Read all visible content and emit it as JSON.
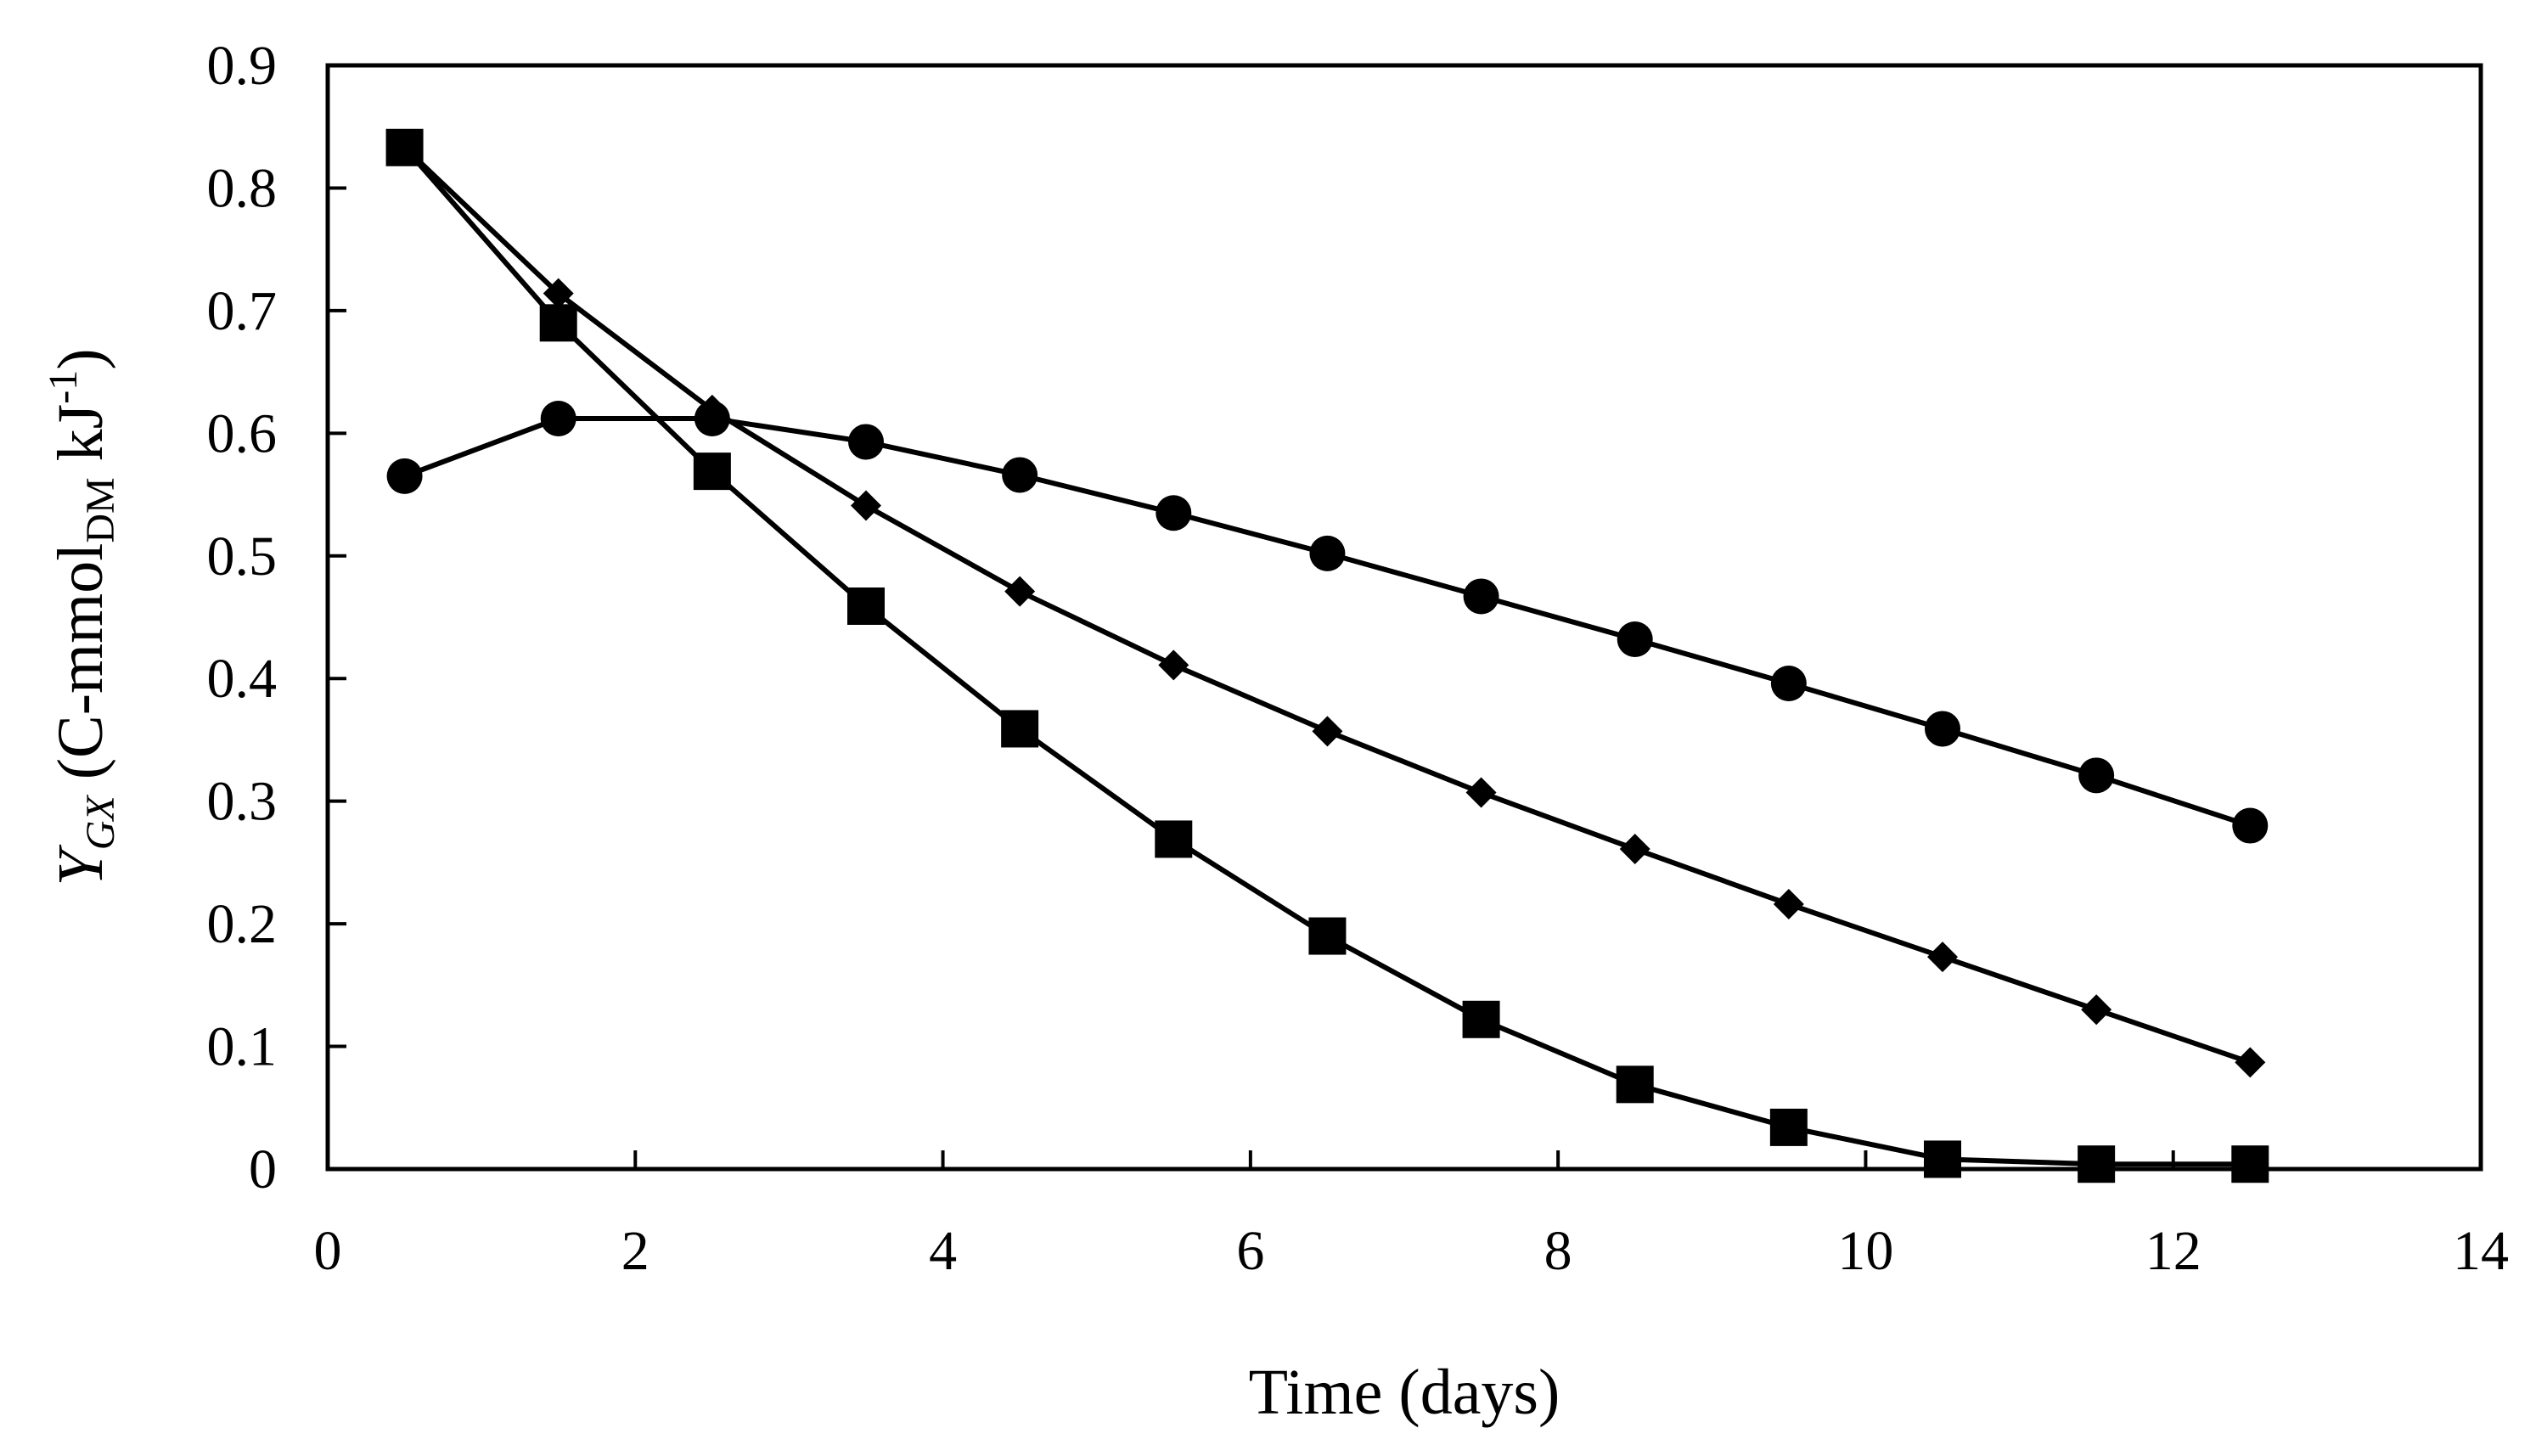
{
  "chart_data": {
    "type": "line",
    "title": "",
    "xlabel": "Time (days)",
    "ylabel": {
      "symbol": "Y",
      "symbol_sub": "GX",
      "paren_open": "(C-mmol",
      "unit_sub": "DM",
      "unit_rest": " kJ",
      "unit_sup": "-1",
      "paren_close": ")"
    },
    "xlim": [
      0,
      14
    ],
    "ylim": [
      0,
      0.9
    ],
    "xticks": [
      0,
      2,
      4,
      6,
      8,
      10,
      12,
      14
    ],
    "yticks": [
      0,
      0.1,
      0.2,
      0.3,
      0.4,
      0.5,
      0.6,
      0.7,
      0.8,
      0.9
    ],
    "grid": false,
    "legend": "none",
    "x": [
      0.5,
      1.5,
      2.5,
      3.5,
      4.5,
      5.5,
      6.5,
      7.5,
      8.5,
      9.5,
      10.5,
      11.5,
      12.5
    ],
    "series": [
      {
        "name": "circle",
        "marker": "circle",
        "values": [
          0.565,
          0.612,
          0.612,
          0.593,
          0.566,
          0.535,
          0.502,
          0.467,
          0.432,
          0.396,
          0.359,
          0.321,
          0.28
        ]
      },
      {
        "name": "diamond",
        "marker": "diamond",
        "values": [
          0.833,
          0.714,
          0.619,
          0.541,
          0.471,
          0.411,
          0.357,
          0.307,
          0.261,
          0.216,
          0.173,
          0.13,
          0.087
        ]
      },
      {
        "name": "square",
        "marker": "square",
        "values": [
          0.833,
          0.69,
          0.569,
          0.459,
          0.359,
          0.269,
          0.19,
          0.122,
          0.069,
          0.034,
          0.008,
          0.004,
          0.004
        ]
      }
    ]
  }
}
